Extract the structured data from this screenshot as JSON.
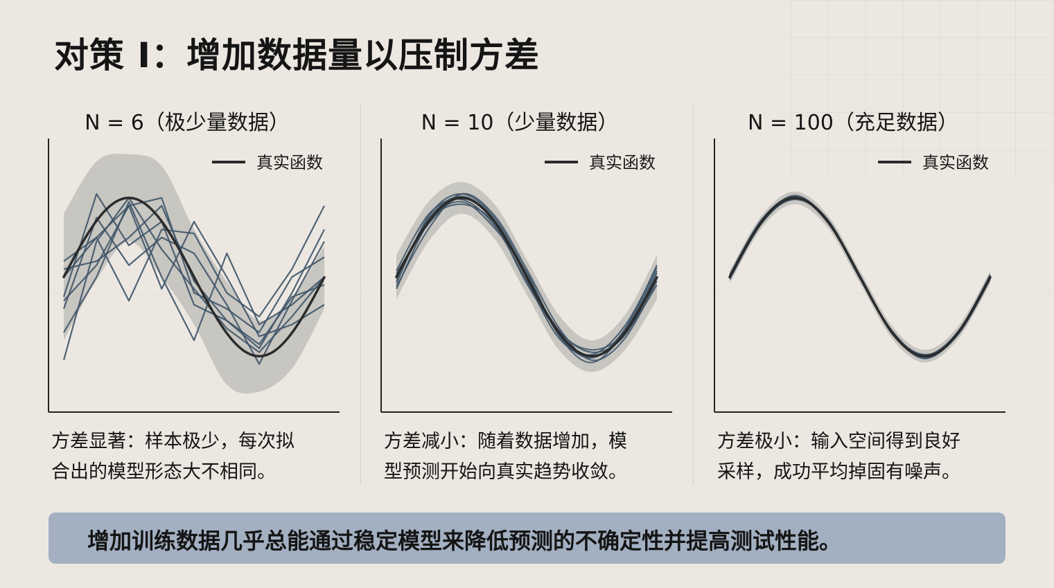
{
  "title": "对策 I：增加数据量以压制方差",
  "banner": "增加训练数据几乎总能通过稳定模型来降低预测的不确定性并提高测试性能。",
  "colors": {
    "background": "#ece8e1",
    "band": "#c2c0bb",
    "fit_line": "#3f5468",
    "true_line": "#2b2b2b",
    "banner": "#a3b0c2"
  },
  "chart_data": [
    {
      "type": "line",
      "title": "N = 6（极少量数据）",
      "legend": [
        "真实函数"
      ],
      "legend_position": "top-right",
      "caption_lines": [
        "方差显著：样本极少，每次拟",
        "合出的模型形态大不相同。"
      ],
      "true_function": "sin",
      "x": [
        0,
        0.79,
        1.57,
        2.36,
        3.14,
        3.93,
        4.71,
        5.5,
        6.28
      ],
      "band_halfwidth": [
        0.8,
        0.75,
        0.55,
        0.7,
        0.6,
        0.65,
        0.45,
        0.45,
        0.4
      ],
      "series": [
        {
          "values": [
            -1.05,
            0.45,
            1.0,
            0.35,
            -0.15,
            -0.65,
            -0.95,
            -0.5,
            0.0
          ]
        },
        {
          "values": [
            -0.3,
            0.15,
            0.9,
            1.0,
            -0.2,
            -0.4,
            -0.7,
            0.0,
            0.25
          ]
        },
        {
          "values": [
            -0.4,
            0.75,
            0.15,
            0.5,
            0.3,
            -0.35,
            -1.1,
            -0.3,
            0.45
          ]
        },
        {
          "values": [
            -0.25,
            1.05,
            0.4,
            0.7,
            -0.35,
            -0.55,
            -0.9,
            -0.2,
            0.6
          ]
        },
        {
          "values": [
            0.2,
            0.5,
            0.9,
            -0.15,
            0.7,
            0.0,
            -0.75,
            -0.6,
            -0.35
          ]
        },
        {
          "values": [
            0.0,
            0.5,
            -0.3,
            0.6,
            0.55,
            -0.2,
            -0.5,
            0.1,
            0.9
          ]
        },
        {
          "values": [
            -0.7,
            0.0,
            0.95,
            0.0,
            -0.8,
            0.3,
            -0.6,
            -0.35,
            0.0
          ]
        },
        {
          "values": [
            0.1,
            0.2,
            0.5,
            0.9,
            -0.05,
            -0.55,
            -0.85,
            -0.25,
            -0.1
          ]
        }
      ]
    },
    {
      "type": "line",
      "title": "N = 10（少量数据）",
      "legend": [
        "真实函数"
      ],
      "legend_position": "top-right",
      "caption_lines": [
        "方差减小：随着数据增加，模",
        "型预测开始向真实趋势收敛。"
      ],
      "true_function": "sin",
      "x": [
        0,
        0.79,
        1.57,
        2.36,
        3.14,
        3.93,
        4.71,
        5.5,
        6.28
      ],
      "band_halfwidth": [
        0.28,
        0.25,
        0.2,
        0.22,
        0.22,
        0.22,
        0.2,
        0.22,
        0.28
      ],
      "series": [
        {
          "values": [
            -0.05,
            0.75,
            1.02,
            0.72,
            0.02,
            -0.72,
            -1.0,
            -0.7,
            0.05
          ]
        },
        {
          "values": [
            0.08,
            0.8,
            0.98,
            0.65,
            -0.05,
            -0.78,
            -0.98,
            -0.62,
            0.12
          ]
        },
        {
          "values": [
            -0.12,
            0.62,
            1.05,
            0.78,
            0.1,
            -0.65,
            -1.05,
            -0.78,
            -0.05
          ]
        },
        {
          "values": [
            0.02,
            0.72,
            0.92,
            0.68,
            -0.08,
            -0.7,
            -0.92,
            -0.72,
            -0.1
          ]
        },
        {
          "values": [
            -0.08,
            0.78,
            1.05,
            0.75,
            0.05,
            -0.75,
            -1.08,
            -0.68,
            0.08
          ]
        },
        {
          "values": [
            0.05,
            0.68,
            1.0,
            0.7,
            0.0,
            -0.68,
            -0.95,
            -0.74,
            0.0
          ]
        },
        {
          "values": [
            -0.15,
            0.7,
            0.95,
            0.62,
            0.06,
            -0.74,
            -1.02,
            -0.66,
            0.15
          ]
        }
      ]
    },
    {
      "type": "line",
      "title": "N = 100（充足数据）",
      "legend": [
        "真实函数"
      ],
      "legend_position": "top-right",
      "caption_lines": [
        "方差极小：输入空间得到良好",
        "采样，成功平均掉固有噪声。"
      ],
      "true_function": "sin",
      "x": [
        0,
        0.79,
        1.57,
        2.36,
        3.14,
        3.93,
        4.71,
        5.5,
        6.28
      ],
      "band_halfwidth": [
        0.08,
        0.08,
        0.08,
        0.08,
        0.08,
        0.08,
        0.08,
        0.08,
        0.08
      ],
      "series": [
        {
          "values": [
            0.0,
            0.72,
            1.0,
            0.71,
            0.0,
            -0.71,
            -1.0,
            -0.71,
            0.0
          ]
        },
        {
          "values": [
            0.02,
            0.73,
            1.02,
            0.7,
            -0.02,
            -0.72,
            -1.02,
            -0.7,
            0.02
          ]
        },
        {
          "values": [
            -0.02,
            0.7,
            0.98,
            0.72,
            0.02,
            -0.7,
            -0.98,
            -0.72,
            -0.02
          ]
        },
        {
          "values": [
            0.03,
            0.74,
            1.01,
            0.69,
            0.01,
            -0.73,
            -0.99,
            -0.69,
            0.03
          ]
        },
        {
          "values": [
            -0.03,
            0.69,
            0.99,
            0.73,
            -0.01,
            -0.69,
            -1.01,
            -0.73,
            -0.03
          ]
        },
        {
          "values": [
            0.01,
            0.71,
            1.03,
            0.71,
            0.0,
            -0.71,
            -1.03,
            -0.71,
            0.01
          ]
        }
      ]
    }
  ]
}
